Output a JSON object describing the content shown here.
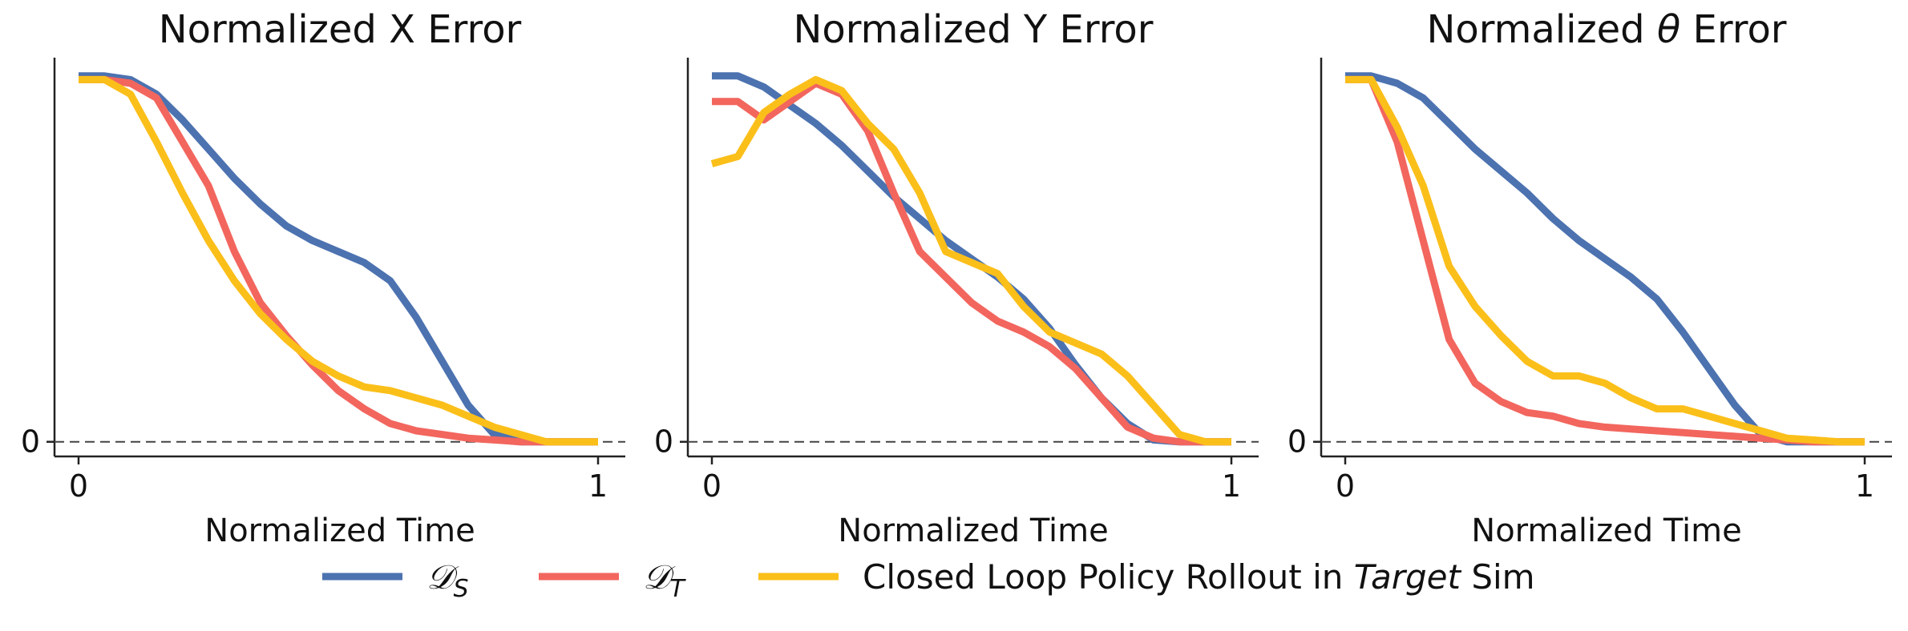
{
  "chart_data": [
    {
      "type": "line",
      "title_prefix": "Normalized X Error",
      "title_symbol": "",
      "title_suffix": "",
      "xlabel": "Normalized Time",
      "xticks": [
        "0",
        "1"
      ],
      "yticks": [
        "0"
      ],
      "xlim": [
        0,
        1
      ],
      "ylim": [
        -0.04,
        1.05
      ],
      "grid": false,
      "series": [
        {
          "key": "ds",
          "x": [
            0,
            0.05,
            0.1,
            0.15,
            0.2,
            0.25,
            0.3,
            0.35,
            0.4,
            0.45,
            0.5,
            0.55,
            0.6,
            0.65,
            0.7,
            0.75,
            0.8,
            0.85,
            0.9,
            0.95,
            1.0
          ],
          "y": [
            1,
            1,
            0.99,
            0.95,
            0.88,
            0.8,
            0.72,
            0.65,
            0.59,
            0.55,
            0.52,
            0.49,
            0.44,
            0.34,
            0.22,
            0.1,
            0.02,
            0,
            0,
            0,
            0
          ]
        },
        {
          "key": "dt",
          "x": [
            0,
            0.05,
            0.1,
            0.15,
            0.2,
            0.25,
            0.3,
            0.35,
            0.4,
            0.45,
            0.5,
            0.55,
            0.6,
            0.65,
            0.7,
            0.75,
            0.8,
            0.85,
            0.9,
            0.95,
            1.0
          ],
          "y": [
            0.99,
            0.99,
            0.98,
            0.94,
            0.82,
            0.7,
            0.52,
            0.38,
            0.29,
            0.21,
            0.14,
            0.09,
            0.05,
            0.03,
            0.02,
            0.01,
            0.005,
            0,
            0,
            0,
            0
          ]
        },
        {
          "key": "cl",
          "x": [
            0,
            0.05,
            0.1,
            0.15,
            0.2,
            0.25,
            0.3,
            0.35,
            0.4,
            0.45,
            0.5,
            0.55,
            0.6,
            0.65,
            0.7,
            0.75,
            0.8,
            0.85,
            0.9,
            0.95,
            1.0
          ],
          "y": [
            0.99,
            0.99,
            0.95,
            0.82,
            0.68,
            0.55,
            0.44,
            0.35,
            0.28,
            0.22,
            0.18,
            0.15,
            0.14,
            0.12,
            0.1,
            0.07,
            0.04,
            0.02,
            0,
            0,
            0
          ]
        }
      ]
    },
    {
      "type": "line",
      "title_prefix": "Normalized Y Error",
      "title_symbol": "",
      "title_suffix": "",
      "xlabel": "Normalized Time",
      "xticks": [
        "0",
        "1"
      ],
      "yticks": [
        "0"
      ],
      "xlim": [
        0,
        1
      ],
      "ylim": [
        -0.04,
        1.05
      ],
      "grid": false,
      "series": [
        {
          "key": "ds",
          "x": [
            0,
            0.05,
            0.1,
            0.15,
            0.2,
            0.25,
            0.3,
            0.35,
            0.4,
            0.45,
            0.5,
            0.55,
            0.6,
            0.65,
            0.7,
            0.75,
            0.8,
            0.85,
            0.9,
            0.95,
            1.0
          ],
          "y": [
            1,
            1,
            0.97,
            0.92,
            0.87,
            0.81,
            0.74,
            0.67,
            0.61,
            0.55,
            0.5,
            0.45,
            0.39,
            0.31,
            0.21,
            0.12,
            0.05,
            0.005,
            0,
            0,
            0
          ]
        },
        {
          "key": "dt",
          "x": [
            0,
            0.05,
            0.1,
            0.15,
            0.2,
            0.25,
            0.3,
            0.35,
            0.4,
            0.45,
            0.5,
            0.55,
            0.6,
            0.65,
            0.7,
            0.75,
            0.8,
            0.85,
            0.9,
            0.95,
            1.0
          ],
          "y": [
            0.93,
            0.93,
            0.88,
            0.93,
            0.98,
            0.95,
            0.85,
            0.68,
            0.52,
            0.45,
            0.38,
            0.33,
            0.3,
            0.26,
            0.2,
            0.12,
            0.04,
            0.01,
            0,
            0,
            0
          ]
        },
        {
          "key": "cl",
          "x": [
            0,
            0.05,
            0.1,
            0.15,
            0.2,
            0.25,
            0.3,
            0.35,
            0.4,
            0.45,
            0.5,
            0.55,
            0.6,
            0.65,
            0.7,
            0.75,
            0.8,
            0.85,
            0.9,
            0.95,
            1.0
          ],
          "y": [
            0.76,
            0.78,
            0.9,
            0.95,
            0.99,
            0.96,
            0.87,
            0.8,
            0.68,
            0.52,
            0.49,
            0.46,
            0.37,
            0.3,
            0.27,
            0.24,
            0.18,
            0.1,
            0.02,
            0,
            0
          ]
        }
      ]
    },
    {
      "type": "line",
      "title_prefix": "Normalized ",
      "title_symbol": "θ",
      "title_suffix": " Error",
      "xlabel": "Normalized Time",
      "xticks": [
        "0",
        "1"
      ],
      "yticks": [
        "0"
      ],
      "xlim": [
        0,
        1
      ],
      "ylim": [
        -0.04,
        1.05
      ],
      "grid": false,
      "series": [
        {
          "key": "ds",
          "x": [
            0,
            0.05,
            0.1,
            0.15,
            0.2,
            0.25,
            0.3,
            0.35,
            0.4,
            0.45,
            0.5,
            0.55,
            0.6,
            0.65,
            0.7,
            0.75,
            0.8,
            0.85,
            0.9,
            0.95,
            1.0
          ],
          "y": [
            1,
            1,
            0.98,
            0.94,
            0.87,
            0.8,
            0.74,
            0.68,
            0.61,
            0.55,
            0.5,
            0.45,
            0.39,
            0.3,
            0.2,
            0.1,
            0.02,
            0,
            0,
            0,
            0
          ]
        },
        {
          "key": "dt",
          "x": [
            0,
            0.05,
            0.1,
            0.15,
            0.2,
            0.25,
            0.3,
            0.35,
            0.4,
            0.45,
            0.5,
            0.55,
            0.6,
            0.65,
            0.7,
            0.75,
            0.8,
            0.85,
            0.9,
            0.95,
            1.0
          ],
          "y": [
            0.99,
            0.99,
            0.82,
            0.55,
            0.28,
            0.16,
            0.11,
            0.08,
            0.07,
            0.05,
            0.04,
            0.035,
            0.03,
            0.025,
            0.02,
            0.015,
            0.01,
            0.005,
            0,
            0,
            0
          ]
        },
        {
          "key": "cl",
          "x": [
            0,
            0.05,
            0.1,
            0.15,
            0.2,
            0.25,
            0.3,
            0.35,
            0.4,
            0.45,
            0.5,
            0.55,
            0.6,
            0.65,
            0.7,
            0.75,
            0.8,
            0.85,
            0.9,
            0.95,
            1.0
          ],
          "y": [
            0.99,
            0.99,
            0.86,
            0.7,
            0.48,
            0.37,
            0.29,
            0.22,
            0.18,
            0.18,
            0.16,
            0.12,
            0.09,
            0.09,
            0.07,
            0.05,
            0.03,
            0.01,
            0.005,
            0,
            0
          ]
        }
      ]
    }
  ],
  "legend": {
    "position": "bottom",
    "items": [
      {
        "key": "ds",
        "main": "𝒟",
        "sub": "S",
        "color": "#4c72b0"
      },
      {
        "key": "dt",
        "main": "𝒟",
        "sub": "T",
        "color": "#f2665e"
      },
      {
        "key": "cl",
        "prefix": "Closed Loop Policy Rollout in ",
        "italic": "Target",
        "suffix": " Sim",
        "color": "#fbbf1a"
      }
    ]
  }
}
